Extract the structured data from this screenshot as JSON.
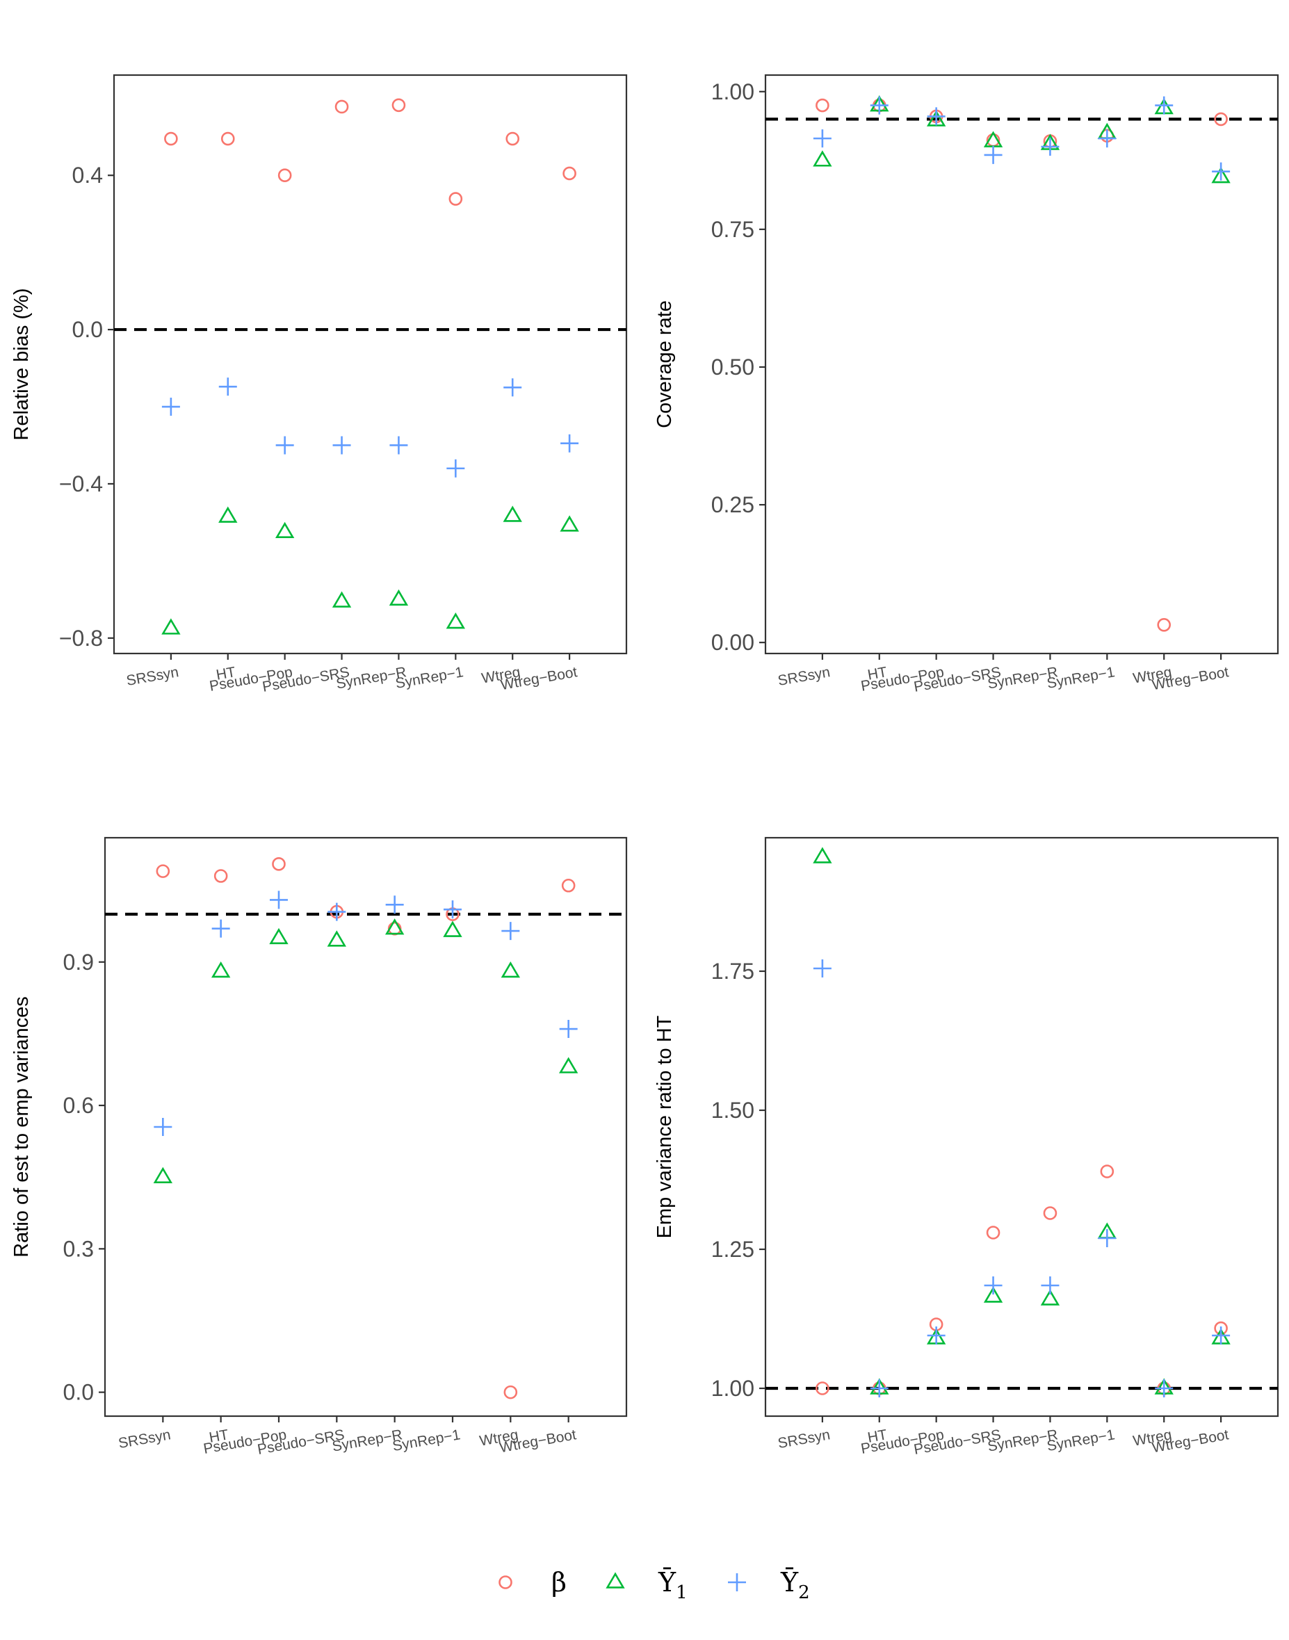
{
  "chart_data": [
    {
      "type": "scatter",
      "ylabel": "Relative bias (%)",
      "xlabel": "",
      "categories": [
        "SRSsyn",
        "HT",
        "Pseudo−Pop",
        "Pseudo−SRS",
        "SynRep−R",
        "SynRep−1",
        "Wtreg",
        "Wtreg−Boot"
      ],
      "ylim": [
        -0.84,
        0.66
      ],
      "yticks": [
        -0.8,
        -0.4,
        0.0,
        0.4
      ],
      "ytick_labels": [
        "−0.8",
        "−0.4",
        "0.0",
        "0.4"
      ],
      "reference_line": 0.0,
      "series": [
        {
          "name": "β",
          "values": [
            0.495,
            0.495,
            0.4,
            0.578,
            0.582,
            0.339,
            0.495,
            0.405
          ]
        },
        {
          "name": "Ȳ₁",
          "values": [
            -0.775,
            -0.485,
            -0.525,
            -0.705,
            -0.7,
            -0.76,
            -0.483,
            -0.508
          ]
        },
        {
          "name": "Ȳ₂",
          "values": [
            -0.2,
            -0.148,
            -0.3,
            -0.3,
            -0.3,
            -0.36,
            -0.15,
            -0.295
          ]
        }
      ],
      "grid": false
    },
    {
      "type": "scatter",
      "ylabel": "Coverage rate",
      "xlabel": "",
      "categories": [
        "SRSsyn",
        "HT",
        "Pseudo−Pop",
        "Pseudo−SRS",
        "SynRep−R",
        "SynRep−1",
        "Wtreg",
        "Wtreg−Boot"
      ],
      "ylim": [
        -0.02,
        1.03
      ],
      "yticks": [
        0.0,
        0.25,
        0.5,
        0.75,
        1.0
      ],
      "ytick_labels": [
        "0.00",
        "0.25",
        "0.50",
        "0.75",
        "1.00"
      ],
      "reference_line": 0.95,
      "series": [
        {
          "name": "β",
          "values": [
            0.975,
            0.975,
            0.955,
            0.912,
            0.91,
            0.92,
            0.032,
            0.95
          ]
        },
        {
          "name": "Ȳ₁",
          "values": [
            0.875,
            0.975,
            0.948,
            0.91,
            0.905,
            0.925,
            0.97,
            0.845
          ]
        },
        {
          "name": "Ȳ₂",
          "values": [
            0.915,
            0.975,
            0.955,
            0.885,
            0.9,
            0.915,
            0.975,
            0.855
          ]
        }
      ],
      "grid": false
    },
    {
      "type": "scatter",
      "ylabel": "Ratio of est to emp variances",
      "xlabel": "",
      "categories": [
        "SRSsyn",
        "HT",
        "Pseudo−Pop",
        "Pseudo−SRS",
        "SynRep−R",
        "SynRep−1",
        "Wtreg",
        "Wtreg−Boot"
      ],
      "ylim": [
        -0.05,
        1.16
      ],
      "yticks": [
        0.0,
        0.3,
        0.6,
        0.9
      ],
      "ytick_labels": [
        "0.0",
        "0.3",
        "0.6",
        "0.9"
      ],
      "reference_line": 1.0,
      "series": [
        {
          "name": "β",
          "values": [
            1.09,
            1.08,
            1.105,
            1.005,
            0.97,
            1.0,
            0.0,
            1.06
          ]
        },
        {
          "name": "Ȳ₁",
          "values": [
            0.45,
            0.88,
            0.95,
            0.945,
            0.97,
            0.965,
            0.88,
            0.68
          ]
        },
        {
          "name": "Ȳ₂",
          "values": [
            0.555,
            0.97,
            1.03,
            1.005,
            1.02,
            1.01,
            0.965,
            0.76
          ]
        }
      ],
      "grid": false
    },
    {
      "type": "scatter",
      "ylabel": "Emp variance ratio to HT",
      "xlabel": "",
      "categories": [
        "SRSsyn",
        "HT",
        "Pseudo−Pop",
        "Pseudo−SRS",
        "SynRep−R",
        "SynRep−1",
        "Wtreg",
        "Wtreg−Boot"
      ],
      "ylim": [
        0.95,
        1.99
      ],
      "yticks": [
        1.0,
        1.25,
        1.5,
        1.75
      ],
      "ytick_labels": [
        "1.00",
        "1.25",
        "1.50",
        "1.75"
      ],
      "reference_line": 1.0,
      "series": [
        {
          "name": "β",
          "values": [
            1.0,
            1.0,
            1.115,
            1.28,
            1.315,
            1.39,
            1.0,
            1.108
          ]
        },
        {
          "name": "Ȳ₁",
          "values": [
            1.955,
            1.0,
            1.09,
            1.165,
            1.16,
            1.28,
            1.0,
            1.09
          ]
        },
        {
          "name": "Ȳ₂",
          "values": [
            1.755,
            1.0,
            1.095,
            1.185,
            1.185,
            1.27,
            1.0,
            1.095
          ]
        }
      ],
      "grid": false
    }
  ],
  "legend": {
    "placement": "bottom",
    "items": [
      {
        "label": "β",
        "shape": "circle",
        "color": "#F8766D"
      },
      {
        "label": "Ȳ",
        "subscript": "1",
        "shape": "triangle",
        "color": "#00BA38"
      },
      {
        "label": "Ȳ",
        "subscript": "2",
        "shape": "plus",
        "color": "#619CFF"
      }
    ]
  },
  "colors": {
    "series": [
      "#F8766D",
      "#00BA38",
      "#619CFF"
    ],
    "axis": "#333333",
    "tick_text": "#4d4d4d",
    "reference_line": "#000000"
  }
}
